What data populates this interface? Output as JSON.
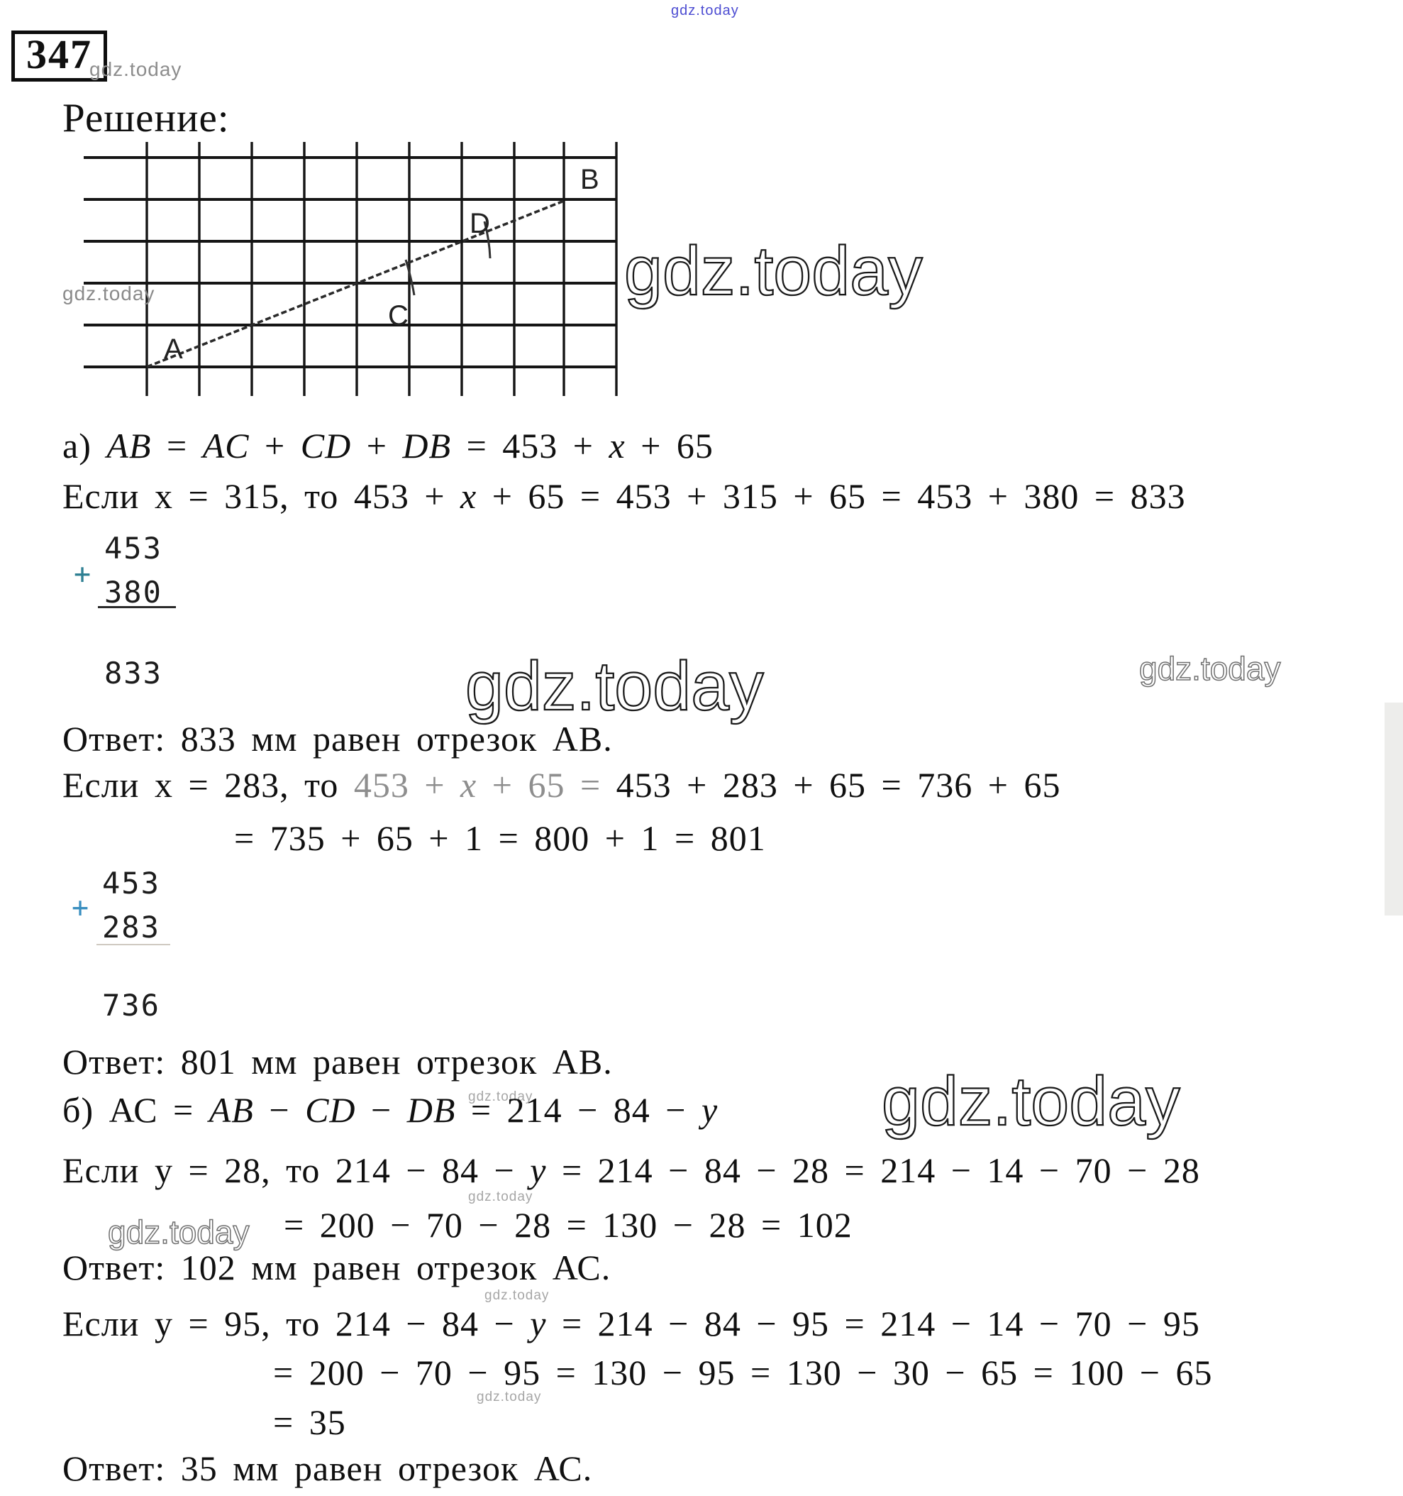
{
  "header": {
    "problem_number": "347",
    "solution_label": "Решение:"
  },
  "watermark": {
    "text": "gdz.today",
    "top_color": "#4d4dd2",
    "gray_color": "#8a8a8a",
    "outline_color": "#1a1a1a"
  },
  "diagram": {
    "points": {
      "a": "A",
      "b": "B",
      "c": "C",
      "d": "D"
    },
    "grid_color": "#151515",
    "segment_color": "#2a2a2a"
  },
  "additions": [
    {
      "operator": "+",
      "addend_top": "453",
      "addend_bottom": "380",
      "result": "833"
    },
    {
      "operator": "+",
      "addend_top": "453",
      "addend_bottom": "283",
      "result": "736"
    }
  ],
  "lines": [
    {
      "name": "formula-a",
      "segments": [
        {
          "t": "а) ",
          "s": "n"
        },
        {
          "t": "AB",
          "s": "i"
        },
        {
          "t": " = ",
          "s": "n"
        },
        {
          "t": "AC",
          "s": "i"
        },
        {
          "t": " + ",
          "s": "n"
        },
        {
          "t": "CD",
          "s": "i"
        },
        {
          "t": " + ",
          "s": "n"
        },
        {
          "t": "DB",
          "s": "i"
        },
        {
          "t": " = 453 + ",
          "s": "n"
        },
        {
          "t": "x",
          "s": "i"
        },
        {
          "t": " + 65",
          "s": "n"
        }
      ]
    },
    {
      "name": "case-x-315",
      "segments": [
        {
          "t": "Если х = 315, то 453 + ",
          "s": "n"
        },
        {
          "t": "x",
          "s": "i"
        },
        {
          "t": " + 65 = 453 + 315 + 65 = 453 + 380 = 833",
          "s": "n"
        }
      ]
    },
    {
      "name": "answer-833",
      "segments": [
        {
          "t": "Ответ: 833 мм равен отрезок АВ.",
          "s": "n"
        }
      ]
    },
    {
      "name": "case-x-283",
      "segments": [
        {
          "t": "Если х = 283, то ",
          "s": "n"
        },
        {
          "t": "453 + ",
          "s": "f"
        },
        {
          "t": "x",
          "s": "fi"
        },
        {
          "t": " + 65 = ",
          "s": "f"
        },
        {
          "t": "453 + 283 + 65 = 736 + 65",
          "s": "n"
        }
      ]
    },
    {
      "name": "case-x-283-cont",
      "segments": [
        {
          "t": "= 735 + 65 + 1 = 800 + 1 = 801",
          "s": "n"
        }
      ]
    },
    {
      "name": "answer-801",
      "segments": [
        {
          "t": "Ответ: 801 мм равен отрезок АВ.",
          "s": "n"
        }
      ]
    },
    {
      "name": "formula-b",
      "segments": [
        {
          "t": "б) АС = ",
          "s": "n"
        },
        {
          "t": "AB",
          "s": "i"
        },
        {
          "t": " − ",
          "s": "n"
        },
        {
          "t": "CD",
          "s": "i"
        },
        {
          "t": " − ",
          "s": "n"
        },
        {
          "t": "DB",
          "s": "i"
        },
        {
          "t": " = 214 − 84 − ",
          "s": "n"
        },
        {
          "t": "y",
          "s": "i"
        }
      ]
    },
    {
      "name": "case-y-28",
      "segments": [
        {
          "t": "Если у = 28, то 214 − 84 − ",
          "s": "n"
        },
        {
          "t": "y",
          "s": "i"
        },
        {
          "t": " = 214 − 84 − 28 = 214 − 14 − 70 − 28",
          "s": "n"
        }
      ]
    },
    {
      "name": "case-y-28-cont",
      "segments": [
        {
          "t": "= 200 − 70 − 28 = 130 − 28 = 102",
          "s": "n"
        }
      ]
    },
    {
      "name": "answer-102",
      "segments": [
        {
          "t": "Ответ: 102 мм равен отрезок АС.",
          "s": "n"
        }
      ]
    },
    {
      "name": "case-y-95",
      "segments": [
        {
          "t": "Если у = 95, то 214 − 84 − ",
          "s": "n"
        },
        {
          "t": "y",
          "s": "i"
        },
        {
          "t": " = 214 − 84 − 95 = 214 − 14 − 70 − 95",
          "s": "n"
        }
      ]
    },
    {
      "name": "case-y-95-cont",
      "segments": [
        {
          "t": "= 200 − 70 − 95 = 130 − 95 = 130 − 30 − 65 = 100 − 65",
          "s": "n"
        }
      ]
    },
    {
      "name": "case-y-95-result",
      "segments": [
        {
          "t": "= 35",
          "s": "n"
        }
      ]
    },
    {
      "name": "answer-35",
      "segments": [
        {
          "t": "Ответ: 35 мм равен отрезок АС.",
          "s": "n"
        }
      ]
    }
  ]
}
